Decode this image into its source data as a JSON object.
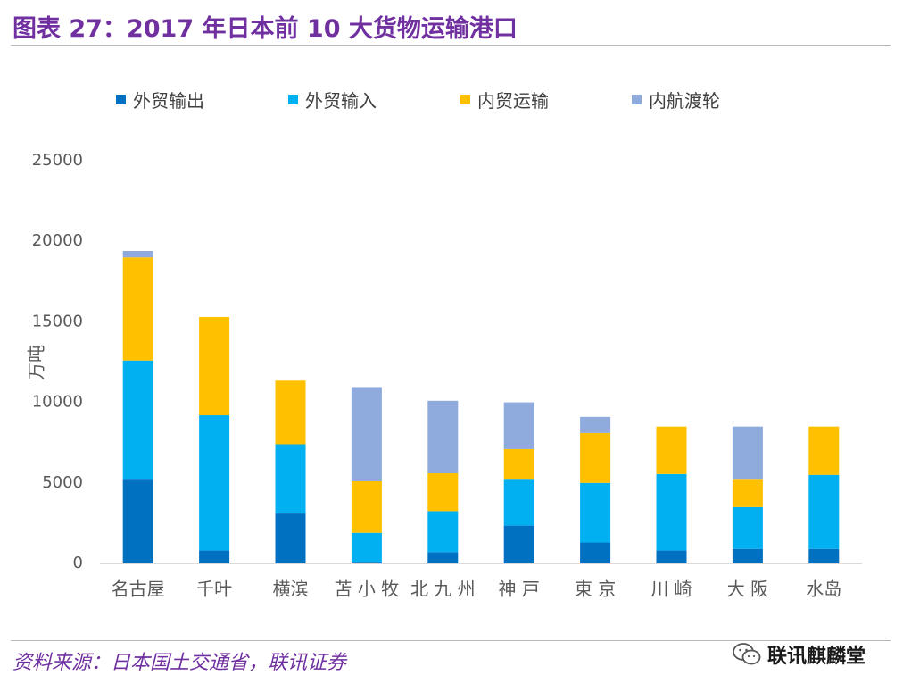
{
  "figure": {
    "title": "图表 27：2017 年日本前 10 大货物运输港口",
    "source": "资料来源：日本国土交通省，联讯证券",
    "watermark": "联讯麒麟堂",
    "watermark_icon": "wechat-icon"
  },
  "colors": {
    "title": "#7030A0",
    "export": "#0070C0",
    "import": "#00B0F0",
    "domestic": "#FFC000",
    "ferry": "#8FAADC",
    "axis_text": "#595959",
    "axis_line": "#D9D9D9"
  },
  "chart_data": {
    "type": "bar",
    "stacked": true,
    "title": "",
    "xlabel": "",
    "ylabel": "万吨",
    "ylim": [
      0,
      25000
    ],
    "yticks": [
      0,
      5000,
      10000,
      15000,
      20000,
      25000
    ],
    "ytick_labels": [
      "0",
      "5000",
      "10000",
      "15000",
      "20000",
      "25000"
    ],
    "grid": false,
    "legend_position": "top",
    "categories": [
      "名古屋",
      "千叶",
      "横滨",
      "苫 小 牧",
      "北 九 州",
      "神 戸",
      "東 京",
      "川 崎",
      "大 阪",
      "水岛"
    ],
    "series": [
      {
        "name": "外贸输出",
        "color_key": "export",
        "values": [
          5200,
          800,
          3100,
          100,
          700,
          2350,
          1300,
          800,
          900,
          900
        ]
      },
      {
        "name": "外贸输入",
        "color_key": "import",
        "values": [
          7400,
          8400,
          4300,
          1800,
          2550,
          2850,
          3700,
          4750,
          2600,
          4600
        ]
      },
      {
        "name": "内贸运输",
        "color_key": "domestic",
        "values": [
          6400,
          6100,
          3950,
          3200,
          2350,
          1900,
          3100,
          2950,
          1700,
          3000
        ]
      },
      {
        "name": "内航渡轮",
        "color_key": "ferry",
        "values": [
          400,
          0,
          0,
          5850,
          4500,
          2900,
          1000,
          0,
          3300,
          0
        ]
      }
    ]
  }
}
